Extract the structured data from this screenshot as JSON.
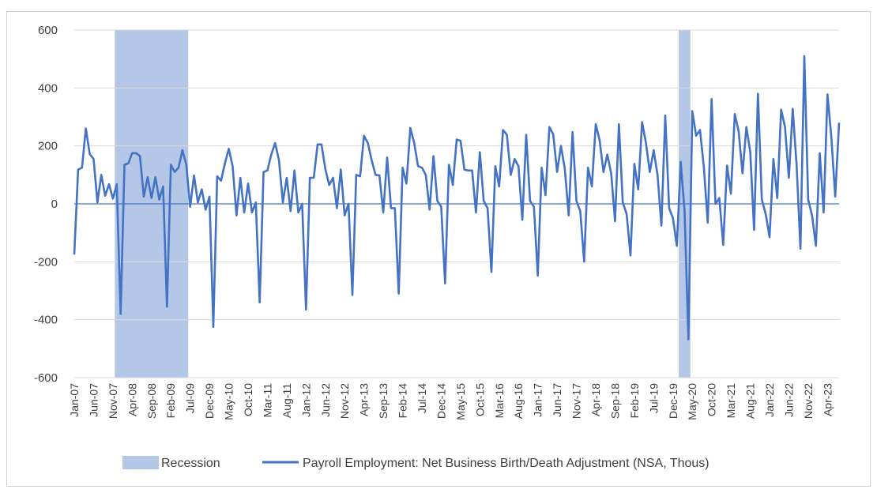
{
  "chart_data": {
    "type": "line",
    "title": "",
    "xlabel": "",
    "ylabel": "",
    "ylim": [
      -600,
      600
    ],
    "yticks": [
      -600,
      -400,
      -200,
      0,
      200,
      400,
      600
    ],
    "grid": "horizontal",
    "legend_position": "bottom",
    "start_month": "2007-01",
    "x_tick_labels": [
      "Jan-07",
      "Jun-07",
      "Nov-07",
      "Apr-08",
      "Sep-08",
      "Feb-09",
      "Jul-09",
      "Dec-09",
      "May-10",
      "Oct-10",
      "Mar-11",
      "Aug-11",
      "Jan-12",
      "Jun-12",
      "Nov-12",
      "Apr-13",
      "Sep-13",
      "Feb-14",
      "Jul-14",
      "Dec-14",
      "May-15",
      "Oct-15",
      "Mar-16",
      "Aug-16",
      "Jan-17",
      "Jun-17",
      "Nov-17",
      "Apr-18",
      "Sep-18",
      "Feb-19",
      "Jul-19",
      "Dec-19",
      "May-20",
      "Oct-20",
      "Mar-21",
      "Aug-21",
      "Jan-22",
      "Jun-22",
      "Nov-22",
      "Apr-23"
    ],
    "recessions": [
      {
        "name": "Recession",
        "start": "2007-12",
        "end": "2009-06"
      },
      {
        "name": "Recession",
        "start": "2020-02",
        "end": "2020-04"
      }
    ],
    "colors": {
      "series": "#4472c4",
      "recession": "#b4c7e7",
      "grid": "#d9d9d9"
    },
    "series": [
      {
        "name": "Payroll Employment: Net Business Birth/Death Adjustment (NSA, Thous)",
        "values": [
          -175,
          118,
          125,
          260,
          172,
          155,
          5,
          100,
          28,
          68,
          18,
          68,
          -380,
          135,
          140,
          175,
          175,
          165,
          25,
          92,
          20,
          92,
          15,
          60,
          -355,
          135,
          110,
          125,
          185,
          135,
          -10,
          98,
          5,
          50,
          -20,
          25,
          -425,
          95,
          80,
          140,
          190,
          130,
          -40,
          90,
          -30,
          70,
          -30,
          5,
          -340,
          110,
          115,
          170,
          210,
          150,
          5,
          90,
          -25,
          115,
          -30,
          0,
          -365,
          90,
          90,
          205,
          205,
          120,
          65,
          90,
          -15,
          118,
          -40,
          0,
          -315,
          100,
          95,
          235,
          210,
          150,
          100,
          98,
          -30,
          160,
          -15,
          -15,
          -310,
          125,
          70,
          262,
          210,
          130,
          125,
          100,
          -20,
          165,
          10,
          -10,
          -275,
          135,
          65,
          222,
          218,
          118,
          115,
          115,
          -30,
          178,
          10,
          -15,
          -235,
          130,
          60,
          255,
          238,
          100,
          155,
          130,
          -55,
          238,
          10,
          -10,
          -248,
          125,
          30,
          265,
          240,
          110,
          200,
          120,
          -40,
          248,
          10,
          -25,
          -200,
          125,
          60,
          275,
          220,
          110,
          170,
          105,
          -60,
          275,
          5,
          -35,
          -178,
          138,
          50,
          282,
          210,
          110,
          185,
          100,
          -75,
          305,
          -15,
          -50,
          -145,
          145,
          -25,
          -468,
          320,
          235,
          255,
          125,
          -65,
          362,
          0,
          20,
          -142,
          132,
          35,
          310,
          250,
          105,
          265,
          180,
          -90,
          380,
          15,
          -35,
          -115,
          155,
          20,
          325,
          265,
          90,
          328,
          135,
          -155,
          510,
          15,
          -40,
          -145,
          175,
          -30,
          378,
          230,
          25,
          280
        ]
      }
    ]
  },
  "legend": {
    "recession_label": "Recession",
    "series_label": "Payroll Employment: Net Business Birth/Death Adjustment (NSA, Thous)"
  }
}
